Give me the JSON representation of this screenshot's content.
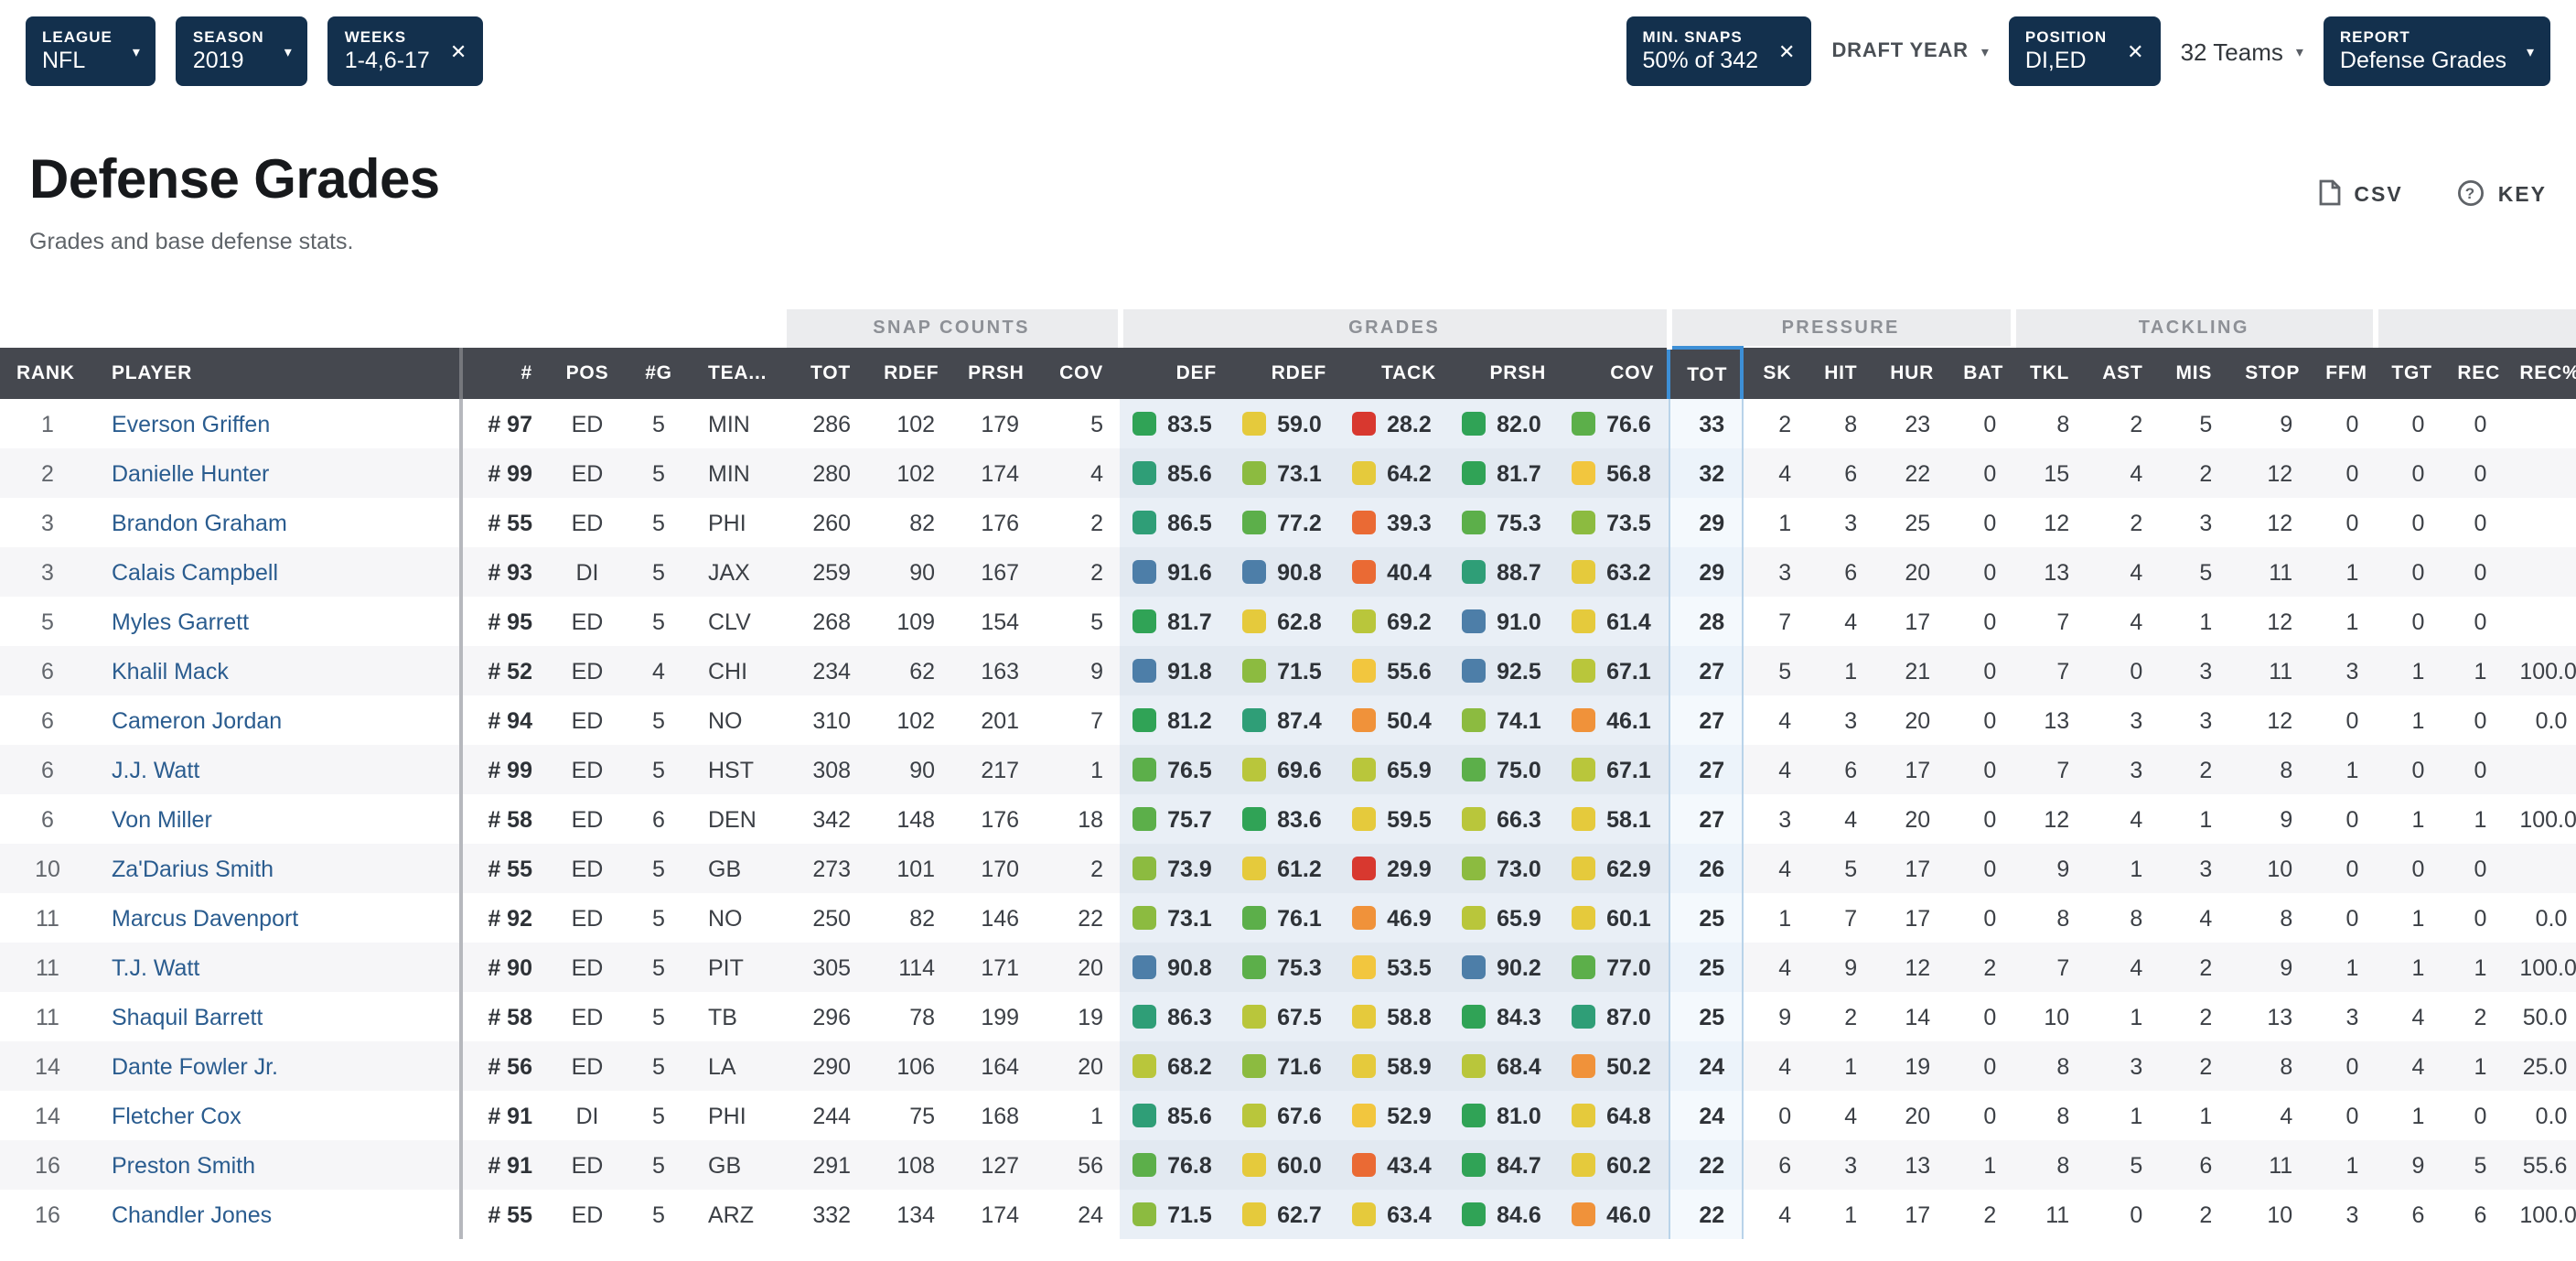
{
  "filters": {
    "league": {
      "label": "LEAGUE",
      "value": "NFL"
    },
    "season": {
      "label": "SEASON",
      "value": "2019"
    },
    "weeks": {
      "label": "WEEKS",
      "value": "1-4,6-17"
    },
    "min_snaps": {
      "label": "MIN. SNAPS",
      "value": "50% of 342"
    },
    "draft_year": {
      "label": "DRAFT YEAR"
    },
    "position": {
      "label": "POSITION",
      "value": "DI,ED"
    },
    "teams": {
      "label": "32 Teams"
    },
    "report": {
      "label": "REPORT",
      "value": "Defense Grades"
    }
  },
  "page": {
    "title": "Defense Grades",
    "subtitle": "Grades and base defense stats.",
    "csv_label": "CSV",
    "key_label": "KEY"
  },
  "table": {
    "group_headers": [
      {
        "label": "SNAP COUNTS"
      },
      {
        "label": "GRADES"
      },
      {
        "label": "PRESSURE"
      },
      {
        "label": "TACKLING"
      },
      {
        "label": ""
      }
    ],
    "columns": [
      "RANK",
      "PLAYER",
      "#",
      "POS",
      "#G",
      "TEA...",
      "TOT",
      "RDEF",
      "PRSH",
      "COV",
      "DEF",
      "RDEF",
      "TACK",
      "PRSH",
      "COV",
      "TOT",
      "SK",
      "HIT",
      "HUR",
      "BAT",
      "TKL",
      "AST",
      "MIS",
      "STOP",
      "FFM",
      "TGT",
      "REC",
      "REC%"
    ],
    "rows": [
      {
        "rank": 1,
        "player": "Everson Griffen",
        "jersey": "# 97",
        "pos": "ED",
        "games": 5,
        "team": "MIN",
        "snaps": [
          286,
          102,
          179,
          5
        ],
        "grades": [
          "83.5",
          "59.0",
          "28.2",
          "82.0",
          "76.6"
        ],
        "pressure": [
          33,
          2,
          8,
          23,
          0
        ],
        "tackling": [
          8,
          2,
          5,
          9,
          0
        ],
        "coverage": [
          "0",
          "0",
          ""
        ]
      },
      {
        "rank": 2,
        "player": "Danielle Hunter",
        "jersey": "# 99",
        "pos": "ED",
        "games": 5,
        "team": "MIN",
        "snaps": [
          280,
          102,
          174,
          4
        ],
        "grades": [
          "85.6",
          "73.1",
          "64.2",
          "81.7",
          "56.8"
        ],
        "pressure": [
          32,
          4,
          6,
          22,
          0
        ],
        "tackling": [
          15,
          4,
          2,
          12,
          0
        ],
        "coverage": [
          "0",
          "0",
          ""
        ]
      },
      {
        "rank": 3,
        "player": "Brandon Graham",
        "jersey": "# 55",
        "pos": "ED",
        "games": 5,
        "team": "PHI",
        "snaps": [
          260,
          82,
          176,
          2
        ],
        "grades": [
          "86.5",
          "77.2",
          "39.3",
          "75.3",
          "73.5"
        ],
        "pressure": [
          29,
          1,
          3,
          25,
          0
        ],
        "tackling": [
          12,
          2,
          3,
          12,
          0
        ],
        "coverage": [
          "0",
          "0",
          ""
        ]
      },
      {
        "rank": 3,
        "player": "Calais Campbell",
        "jersey": "# 93",
        "pos": "DI",
        "games": 5,
        "team": "JAX",
        "snaps": [
          259,
          90,
          167,
          2
        ],
        "grades": [
          "91.6",
          "90.8",
          "40.4",
          "88.7",
          "63.2"
        ],
        "pressure": [
          29,
          3,
          6,
          20,
          0
        ],
        "tackling": [
          13,
          4,
          5,
          11,
          1
        ],
        "coverage": [
          "0",
          "0",
          ""
        ]
      },
      {
        "rank": 5,
        "player": "Myles Garrett",
        "jersey": "# 95",
        "pos": "ED",
        "games": 5,
        "team": "CLV",
        "snaps": [
          268,
          109,
          154,
          5
        ],
        "grades": [
          "81.7",
          "62.8",
          "69.2",
          "91.0",
          "61.4"
        ],
        "pressure": [
          28,
          7,
          4,
          17,
          0
        ],
        "tackling": [
          7,
          4,
          1,
          12,
          1
        ],
        "coverage": [
          "0",
          "0",
          ""
        ]
      },
      {
        "rank": 6,
        "player": "Khalil Mack",
        "jersey": "# 52",
        "pos": "ED",
        "games": 4,
        "team": "CHI",
        "snaps": [
          234,
          62,
          163,
          9
        ],
        "grades": [
          "91.8",
          "71.5",
          "55.6",
          "92.5",
          "67.1"
        ],
        "pressure": [
          27,
          5,
          1,
          21,
          0
        ],
        "tackling": [
          7,
          0,
          3,
          11,
          3
        ],
        "coverage": [
          "1",
          "1",
          "100.0"
        ]
      },
      {
        "rank": 6,
        "player": "Cameron Jordan",
        "jersey": "# 94",
        "pos": "ED",
        "games": 5,
        "team": "NO",
        "snaps": [
          310,
          102,
          201,
          7
        ],
        "grades": [
          "81.2",
          "87.4",
          "50.4",
          "74.1",
          "46.1"
        ],
        "pressure": [
          27,
          4,
          3,
          20,
          0
        ],
        "tackling": [
          13,
          3,
          3,
          12,
          0
        ],
        "coverage": [
          "1",
          "0",
          "0.0"
        ]
      },
      {
        "rank": 6,
        "player": "J.J. Watt",
        "jersey": "# 99",
        "pos": "ED",
        "games": 5,
        "team": "HST",
        "snaps": [
          308,
          90,
          217,
          1
        ],
        "grades": [
          "76.5",
          "69.6",
          "65.9",
          "75.0",
          "67.1"
        ],
        "pressure": [
          27,
          4,
          6,
          17,
          0
        ],
        "tackling": [
          7,
          3,
          2,
          8,
          1
        ],
        "coverage": [
          "0",
          "0",
          ""
        ]
      },
      {
        "rank": 6,
        "player": "Von Miller",
        "jersey": "# 58",
        "pos": "ED",
        "games": 6,
        "team": "DEN",
        "snaps": [
          342,
          148,
          176,
          18
        ],
        "grades": [
          "75.7",
          "83.6",
          "59.5",
          "66.3",
          "58.1"
        ],
        "pressure": [
          27,
          3,
          4,
          20,
          0
        ],
        "tackling": [
          12,
          4,
          1,
          9,
          0
        ],
        "coverage": [
          "1",
          "1",
          "100.0"
        ]
      },
      {
        "rank": 10,
        "player": "Za'Darius Smith",
        "jersey": "# 55",
        "pos": "ED",
        "games": 5,
        "team": "GB",
        "snaps": [
          273,
          101,
          170,
          2
        ],
        "grades": [
          "73.9",
          "61.2",
          "29.9",
          "73.0",
          "62.9"
        ],
        "pressure": [
          26,
          4,
          5,
          17,
          0
        ],
        "tackling": [
          9,
          1,
          3,
          10,
          0
        ],
        "coverage": [
          "0",
          "0",
          ""
        ]
      },
      {
        "rank": 11,
        "player": "Marcus Davenport",
        "jersey": "# 92",
        "pos": "ED",
        "games": 5,
        "team": "NO",
        "snaps": [
          250,
          82,
          146,
          22
        ],
        "grades": [
          "73.1",
          "76.1",
          "46.9",
          "65.9",
          "60.1"
        ],
        "pressure": [
          25,
          1,
          7,
          17,
          0
        ],
        "tackling": [
          8,
          8,
          4,
          8,
          0
        ],
        "coverage": [
          "1",
          "0",
          "0.0"
        ]
      },
      {
        "rank": 11,
        "player": "T.J. Watt",
        "jersey": "# 90",
        "pos": "ED",
        "games": 5,
        "team": "PIT",
        "snaps": [
          305,
          114,
          171,
          20
        ],
        "grades": [
          "90.8",
          "75.3",
          "53.5",
          "90.2",
          "77.0"
        ],
        "pressure": [
          25,
          4,
          9,
          12,
          2
        ],
        "tackling": [
          7,
          4,
          2,
          9,
          1
        ],
        "coverage": [
          "1",
          "1",
          "100.0"
        ]
      },
      {
        "rank": 11,
        "player": "Shaquil Barrett",
        "jersey": "# 58",
        "pos": "ED",
        "games": 5,
        "team": "TB",
        "snaps": [
          296,
          78,
          199,
          19
        ],
        "grades": [
          "86.3",
          "67.5",
          "58.8",
          "84.3",
          "87.0"
        ],
        "pressure": [
          25,
          9,
          2,
          14,
          0
        ],
        "tackling": [
          10,
          1,
          2,
          13,
          3
        ],
        "coverage": [
          "4",
          "2",
          "50.0"
        ]
      },
      {
        "rank": 14,
        "player": "Dante Fowler Jr.",
        "jersey": "# 56",
        "pos": "ED",
        "games": 5,
        "team": "LA",
        "snaps": [
          290,
          106,
          164,
          20
        ],
        "grades": [
          "68.2",
          "71.6",
          "58.9",
          "68.4",
          "50.2"
        ],
        "pressure": [
          24,
          4,
          1,
          19,
          0
        ],
        "tackling": [
          8,
          3,
          2,
          8,
          0
        ],
        "coverage": [
          "4",
          "1",
          "25.0"
        ]
      },
      {
        "rank": 14,
        "player": "Fletcher Cox",
        "jersey": "# 91",
        "pos": "DI",
        "games": 5,
        "team": "PHI",
        "snaps": [
          244,
          75,
          168,
          1
        ],
        "grades": [
          "85.6",
          "67.6",
          "52.9",
          "81.0",
          "64.8"
        ],
        "pressure": [
          24,
          0,
          4,
          20,
          0
        ],
        "tackling": [
          8,
          1,
          1,
          4,
          0
        ],
        "coverage": [
          "1",
          "0",
          "0.0"
        ]
      },
      {
        "rank": 16,
        "player": "Preston Smith",
        "jersey": "# 91",
        "pos": "ED",
        "games": 5,
        "team": "GB",
        "snaps": [
          291,
          108,
          127,
          56
        ],
        "grades": [
          "76.8",
          "60.0",
          "43.4",
          "84.7",
          "60.2"
        ],
        "pressure": [
          22,
          6,
          3,
          13,
          1
        ],
        "tackling": [
          8,
          5,
          6,
          11,
          1
        ],
        "coverage": [
          "9",
          "5",
          "55.6"
        ]
      },
      {
        "rank": 16,
        "player": "Chandler Jones",
        "jersey": "# 55",
        "pos": "ED",
        "games": 5,
        "team": "ARZ",
        "snaps": [
          332,
          134,
          174,
          24
        ],
        "grades": [
          "71.5",
          "62.7",
          "63.4",
          "84.6",
          "46.0"
        ],
        "pressure": [
          22,
          4,
          1,
          17,
          2
        ],
        "tackling": [
          11,
          0,
          2,
          10,
          3
        ],
        "coverage": [
          "6",
          "6",
          "100.0"
        ]
      }
    ]
  },
  "grade_colors": [
    {
      "min": 90,
      "color": "#4d7ea8"
    },
    {
      "min": 85,
      "color": "#2f9e77"
    },
    {
      "min": 80,
      "color": "#30a356"
    },
    {
      "min": 75,
      "color": "#5caf4a"
    },
    {
      "min": 70,
      "color": "#8cbb40"
    },
    {
      "min": 65,
      "color": "#b9c63b"
    },
    {
      "min": 58,
      "color": "#e5ca3c"
    },
    {
      "min": 52,
      "color": "#f2c63e"
    },
    {
      "min": 45,
      "color": "#f0923a"
    },
    {
      "min": 38,
      "color": "#ea6a34"
    },
    {
      "min": 0,
      "color": "#d8382f"
    }
  ]
}
